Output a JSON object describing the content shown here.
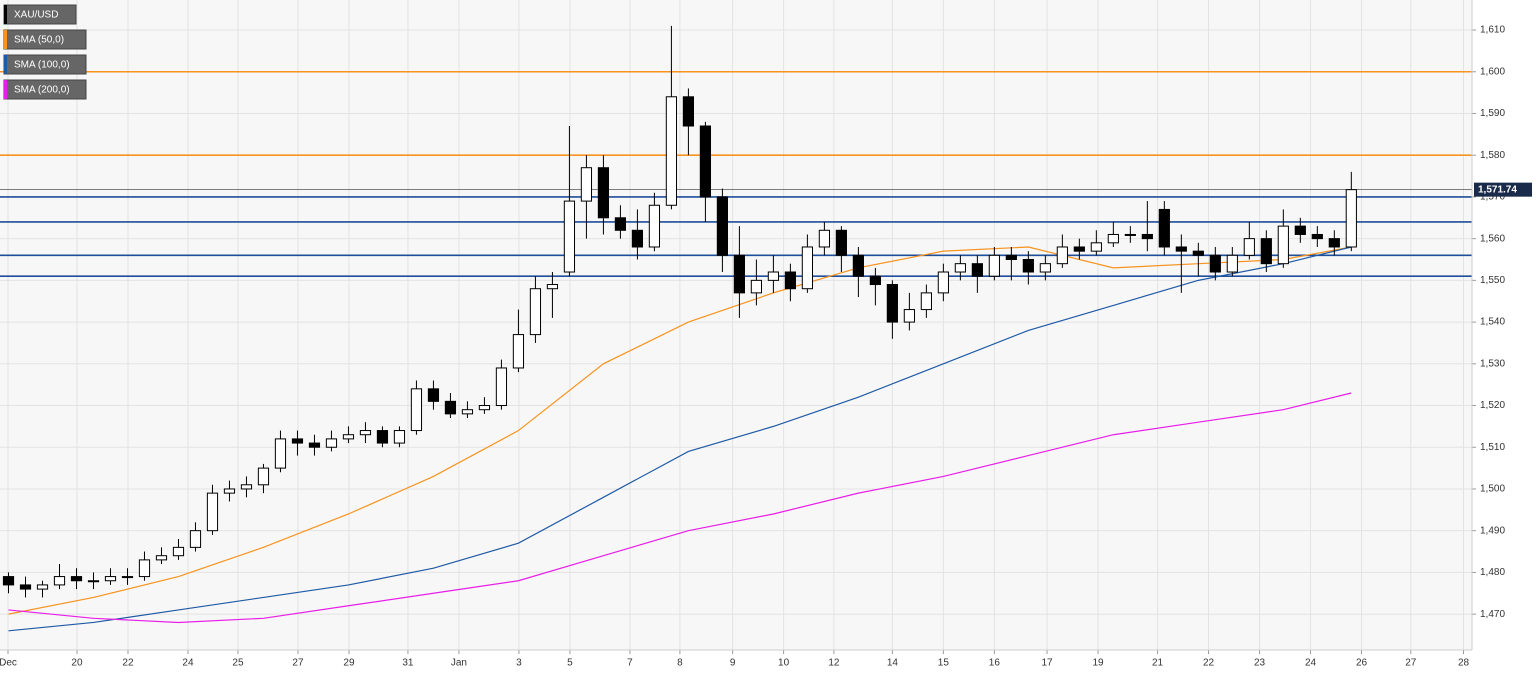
{
  "chart_data": {
    "type": "candlestick",
    "title": "XAU/USD",
    "candles": [
      [
        1479,
        1480,
        1475,
        1477
      ],
      [
        1477,
        1479,
        1474,
        1476
      ],
      [
        1476,
        1478,
        1474,
        1477
      ],
      [
        1477,
        1482,
        1476,
        1479
      ],
      [
        1479,
        1481,
        1476,
        1478
      ],
      [
        1478,
        1480,
        1476,
        1478
      ],
      [
        1478,
        1481,
        1477,
        1479
      ],
      [
        1479,
        1481,
        1477,
        1479
      ],
      [
        1479,
        1485,
        1478,
        1483
      ],
      [
        1483,
        1486,
        1482,
        1484
      ],
      [
        1484,
        1488,
        1483,
        1486
      ],
      [
        1486,
        1492,
        1485,
        1490
      ],
      [
        1490,
        1501,
        1489,
        1499
      ],
      [
        1499,
        1502,
        1497,
        1500
      ],
      [
        1500,
        1503,
        1498,
        1501
      ],
      [
        1501,
        1506,
        1499,
        1505
      ],
      [
        1505,
        1514,
        1504,
        1512
      ],
      [
        1512,
        1514,
        1508,
        1511
      ],
      [
        1511,
        1513,
        1508,
        1510
      ],
      [
        1510,
        1514,
        1509,
        1512
      ],
      [
        1512,
        1515,
        1511,
        1513
      ],
      [
        1513,
        1516,
        1511,
        1514
      ],
      [
        1514,
        1515,
        1510,
        1511
      ],
      [
        1511,
        1515,
        1510,
        1514
      ],
      [
        1514,
        1526,
        1513,
        1524
      ],
      [
        1524,
        1526,
        1519,
        1521
      ],
      [
        1521,
        1523,
        1517,
        1518
      ],
      [
        1518,
        1521,
        1517,
        1519
      ],
      [
        1519,
        1522,
        1518,
        1520
      ],
      [
        1520,
        1531,
        1519,
        1529
      ],
      [
        1529,
        1543,
        1528,
        1537
      ],
      [
        1537,
        1551,
        1535,
        1548
      ],
      [
        1548,
        1552,
        1541,
        1549
      ],
      [
        1552,
        1587,
        1551,
        1569
      ],
      [
        1569,
        1580,
        1560,
        1577
      ],
      [
        1577,
        1580,
        1561,
        1565
      ],
      [
        1565,
        1568,
        1560,
        1562
      ],
      [
        1562,
        1567,
        1555,
        1558
      ],
      [
        1558,
        1571,
        1557,
        1568
      ],
      [
        1568,
        1611,
        1567,
        1594
      ],
      [
        1594,
        1596,
        1580,
        1587
      ],
      [
        1587,
        1588,
        1564,
        1570
      ],
      [
        1570,
        1572,
        1552,
        1556
      ],
      [
        1556,
        1563,
        1541,
        1547
      ],
      [
        1547,
        1555,
        1544,
        1550
      ],
      [
        1550,
        1556,
        1547,
        1552
      ],
      [
        1552,
        1554,
        1545,
        1548
      ],
      [
        1548,
        1561,
        1547,
        1558
      ],
      [
        1558,
        1564,
        1556,
        1562
      ],
      [
        1562,
        1563,
        1552,
        1556
      ],
      [
        1556,
        1558,
        1546,
        1551
      ],
      [
        1551,
        1553,
        1544,
        1549
      ],
      [
        1549,
        1550,
        1536,
        1540
      ],
      [
        1540,
        1547,
        1538,
        1543
      ],
      [
        1543,
        1549,
        1541,
        1547
      ],
      [
        1547,
        1554,
        1545,
        1552
      ],
      [
        1552,
        1556,
        1550,
        1554
      ],
      [
        1554,
        1556,
        1547,
        1551
      ],
      [
        1551,
        1558,
        1550,
        1556
      ],
      [
        1556,
        1558,
        1550,
        1555
      ],
      [
        1555,
        1557,
        1549,
        1552
      ],
      [
        1552,
        1556,
        1550,
        1554
      ],
      [
        1554,
        1561,
        1553,
        1558
      ],
      [
        1558,
        1560,
        1555,
        1557
      ],
      [
        1557,
        1562,
        1556,
        1559
      ],
      [
        1559,
        1564,
        1558,
        1561
      ],
      [
        1561,
        1563,
        1559,
        1561
      ],
      [
        1561,
        1569,
        1557,
        1560
      ],
      [
        1567,
        1569,
        1556,
        1558
      ],
      [
        1558,
        1561,
        1547,
        1557
      ],
      [
        1557,
        1559,
        1551,
        1556
      ],
      [
        1556,
        1558,
        1550,
        1552
      ],
      [
        1552,
        1558,
        1551,
        1556
      ],
      [
        1556,
        1564,
        1555,
        1560
      ],
      [
        1560,
        1562,
        1552,
        1554
      ],
      [
        1554,
        1567,
        1553,
        1563
      ],
      [
        1563,
        1565,
        1559,
        1561
      ],
      [
        1561,
        1563,
        1558,
        1560
      ],
      [
        1560,
        1562,
        1556,
        1558
      ],
      [
        1558,
        1576,
        1557,
        1571.74
      ]
    ],
    "up_color": "#ffffff",
    "down_color": "#000000",
    "series": [
      {
        "name": "SMA (50,0)",
        "color": "#f7931e",
        "x": [
          0,
          5,
          10,
          15,
          20,
          25,
          30,
          35,
          40,
          45,
          50,
          55,
          60,
          65,
          70,
          75,
          79
        ],
        "values": [
          1470,
          1474,
          1479,
          1486,
          1494,
          1503,
          1514,
          1530,
          1540,
          1547,
          1553,
          1557,
          1558,
          1553,
          1554,
          1555,
          1558
        ]
      },
      {
        "name": "SMA (100,0)",
        "color": "#1f5aa6",
        "x": [
          0,
          5,
          10,
          15,
          20,
          25,
          30,
          35,
          40,
          45,
          50,
          55,
          60,
          65,
          70,
          75,
          79
        ],
        "values": [
          1466,
          1468,
          1471,
          1474,
          1477,
          1481,
          1487,
          1498,
          1509,
          1515,
          1522,
          1530,
          1538,
          1544,
          1550,
          1554,
          1558
        ]
      },
      {
        "name": "SMA (200,0)",
        "color": "#e81ee8",
        "x": [
          0,
          5,
          10,
          15,
          20,
          25,
          30,
          35,
          40,
          45,
          50,
          55,
          60,
          65,
          70,
          75,
          79
        ],
        "values": [
          1471,
          1469,
          1468,
          1469,
          1472,
          1475,
          1478,
          1484,
          1490,
          1494,
          1499,
          1503,
          1508,
          1513,
          1516,
          1519,
          1523
        ]
      }
    ],
    "levels": [
      {
        "value": 1600,
        "color": "#f7931e"
      },
      {
        "value": 1580,
        "color": "#f7931e"
      },
      {
        "value": 1570,
        "color": "#1f4e9a"
      },
      {
        "value": 1564,
        "color": "#1f4e9a"
      },
      {
        "value": 1556,
        "color": "#1f4e9a"
      },
      {
        "value": 1551,
        "color": "#1f4e9a"
      }
    ],
    "last_price": 1571.74,
    "last_price_label": "1,571.74",
    "ylim": [
      1461.4,
      1617.2
    ],
    "yticks": [
      {
        "value": 1470,
        "label": "1,470"
      },
      {
        "value": 1480,
        "label": "1,480"
      },
      {
        "value": 1490,
        "label": "1,490"
      },
      {
        "value": 1500,
        "label": "1,500"
      },
      {
        "value": 1510,
        "label": "1,510"
      },
      {
        "value": 1520,
        "label": "1,520"
      },
      {
        "value": 1530,
        "label": "1,530"
      },
      {
        "value": 1540,
        "label": "1,540"
      },
      {
        "value": 1550,
        "label": "1,550"
      },
      {
        "value": 1560,
        "label": "1,560"
      },
      {
        "value": 1570,
        "label": "1,570"
      },
      {
        "value": 1580,
        "label": "1,580"
      },
      {
        "value": 1590,
        "label": "1,590"
      },
      {
        "value": 1600,
        "label": "1,600"
      },
      {
        "value": 1610,
        "label": "1,610"
      }
    ],
    "xlim": [
      0,
      86.6
    ],
    "xticks": [
      {
        "value": 0.47,
        "label": "Dec"
      },
      {
        "value": 4.53,
        "label": "20"
      },
      {
        "value": 7.53,
        "label": "22"
      },
      {
        "value": 11.06,
        "label": "24"
      },
      {
        "value": 14,
        "label": "25"
      },
      {
        "value": 17.53,
        "label": "27"
      },
      {
        "value": 20.53,
        "label": "29"
      },
      {
        "value": 24,
        "label": "31"
      },
      {
        "value": 27,
        "label": "Jan"
      },
      {
        "value": 30.53,
        "label": "3"
      },
      {
        "value": 33.53,
        "label": "5"
      },
      {
        "value": 37.06,
        "label": "7"
      },
      {
        "value": 40,
        "label": "8"
      },
      {
        "value": 43.1,
        "label": "9"
      },
      {
        "value": 46.1,
        "label": "10"
      },
      {
        "value": 49.06,
        "label": "12"
      },
      {
        "value": 52.5,
        "label": "14"
      },
      {
        "value": 55.5,
        "label": "15"
      },
      {
        "value": 58.5,
        "label": "16"
      },
      {
        "value": 61.6,
        "label": "17"
      },
      {
        "value": 64.6,
        "label": "19"
      },
      {
        "value": 68.1,
        "label": "21"
      },
      {
        "value": 71.1,
        "label": "22"
      },
      {
        "value": 74.1,
        "label": "23"
      },
      {
        "value": 77.1,
        "label": "24"
      },
      {
        "value": 80.1,
        "label": "26"
      },
      {
        "value": 83,
        "label": "27"
      },
      {
        "value": 86.1,
        "label": "28"
      }
    ],
    "grid": true
  }
}
